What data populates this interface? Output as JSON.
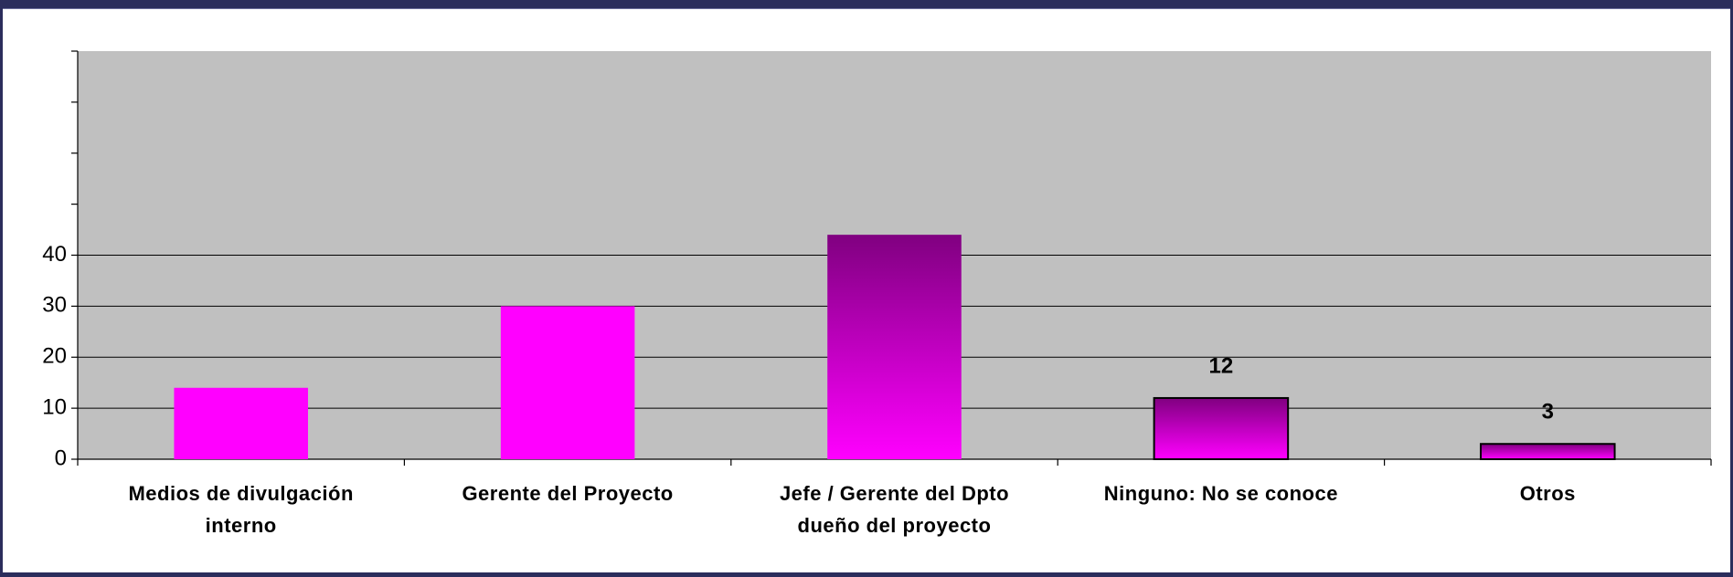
{
  "chart_data": {
    "type": "bar",
    "categories": [
      "Medios de divulgación interno",
      "Gerente del Proyecto",
      "Jefe / Gerente del Dpto dueño del proyecto",
      "Ninguno: No se conoce",
      "Otros"
    ],
    "values": [
      14,
      30,
      44,
      12,
      3
    ],
    "value_labels": [
      null,
      null,
      null,
      "12",
      "3"
    ],
    "color": "#ff00ff",
    "gradient_top": [
      null,
      null,
      "#800080",
      "#800080",
      "#800080"
    ],
    "outline": [
      false,
      false,
      false,
      true,
      true
    ],
    "ylim": [
      0,
      80
    ],
    "yticks": [
      0,
      10,
      20,
      30,
      40
    ],
    "yticks_unlabeled": [
      50,
      60,
      70,
      80
    ],
    "grid": true
  }
}
